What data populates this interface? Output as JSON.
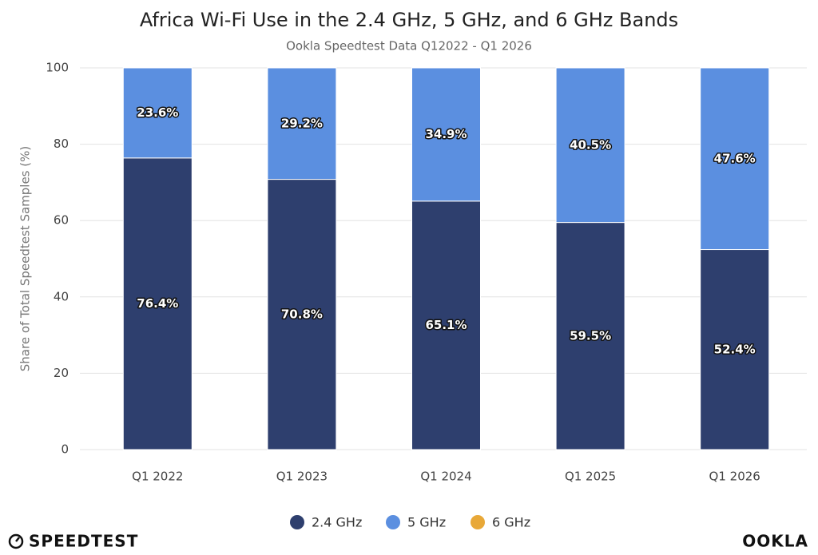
{
  "chart_data": {
    "type": "stacked_bar",
    "title": "Africa Wi-Fi Use in the 2.4 GHz, 5 GHz, and 6 GHz Bands",
    "subtitle": "Ookla Speedtest Data Q12022 - Q1 2026",
    "y_label": "Share of Total Speedtest Samples (%)",
    "categories": [
      "Q1 2022",
      "Q1 2023",
      "Q1 2024",
      "Q1 2025",
      "Q1 2026"
    ],
    "series": [
      {
        "name": "2.4 GHz",
        "color": "#2e3f6e",
        "values": [
          76.4,
          70.8,
          65.1,
          59.5,
          52.4
        ],
        "value_labels": [
          "76.4%",
          "70.8%",
          "65.1%",
          "59.5%",
          "52.4%"
        ]
      },
      {
        "name": "5 GHz",
        "color": "#5b8fe0",
        "values": [
          23.6,
          29.2,
          34.9,
          40.5,
          47.6
        ],
        "value_labels": [
          "23.6%",
          "29.2%",
          "34.9%",
          "40.5%",
          "47.6%"
        ]
      },
      {
        "name": "6 GHz",
        "color": "#e8a838",
        "values": [
          0,
          0,
          0,
          0,
          0
        ]
      }
    ],
    "ylim": [
      0,
      100
    ],
    "yticks": [
      0,
      20,
      40,
      60,
      80,
      100
    ],
    "grid": true
  },
  "branding": {
    "left": "SPEEDTEST",
    "right": "OOKLA"
  }
}
